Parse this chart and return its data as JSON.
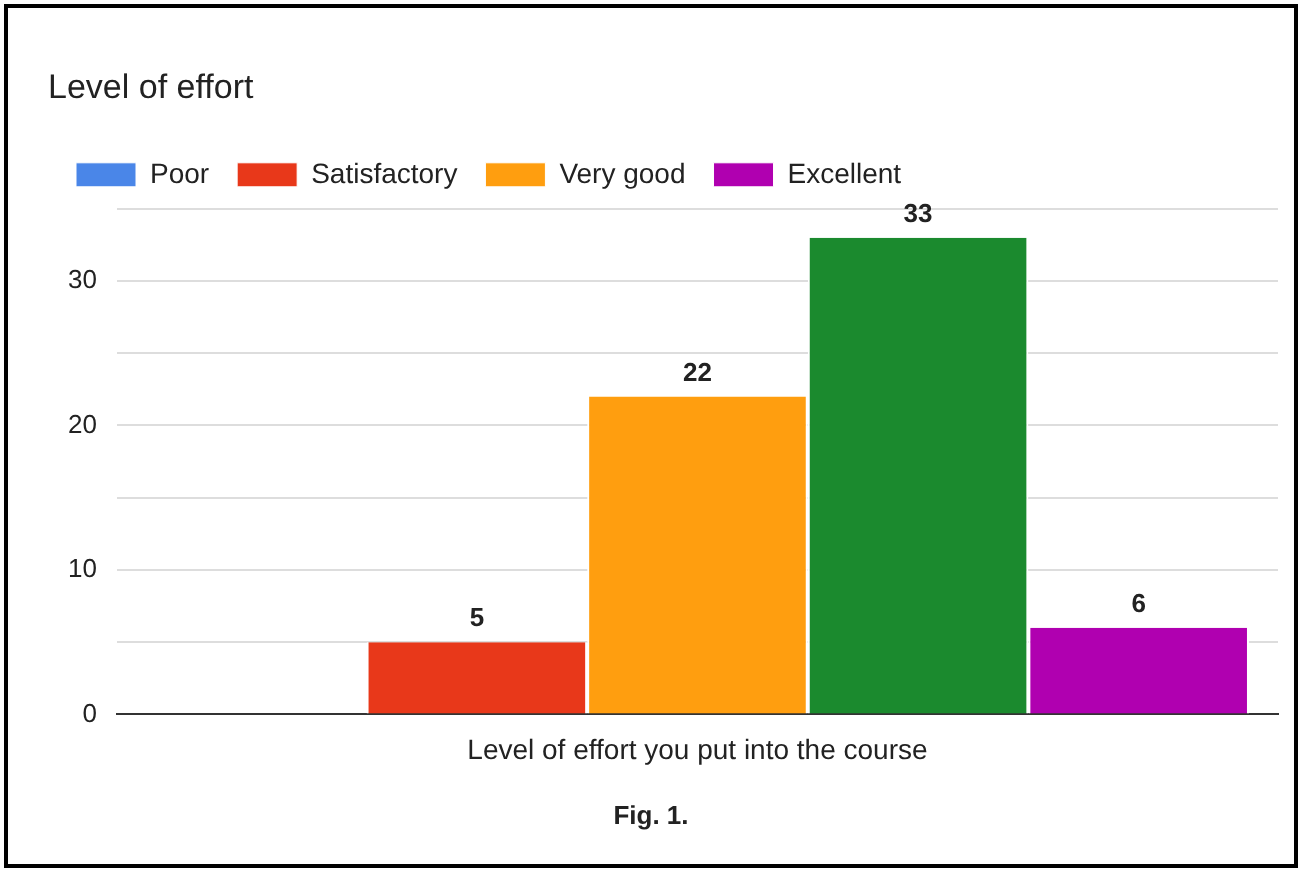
{
  "chart_data": {
    "type": "bar",
    "title": "Level of effort",
    "categories": [
      "Level of effort you put into the course"
    ],
    "series": [
      {
        "name": "Poor",
        "color": "#4a86e8",
        "values": [
          null
        ]
      },
      {
        "name": "Satisfactory",
        "color": "#e8381a",
        "values": [
          5
        ]
      },
      {
        "name": "Very good",
        "color": "#ff9e0f",
        "values": [
          22
        ]
      },
      {
        "color": "#1b8a2e",
        "values": [
          33
        ]
      },
      {
        "name": "Excellent",
        "color": "#b000b0",
        "values": [
          6
        ]
      }
    ],
    "ylim": [
      0,
      35
    ],
    "yticks": [
      0,
      {
        "value": 5,
        "label": null
      },
      10,
      {
        "value": 15,
        "label": null
      },
      20,
      {
        "value": 25,
        "label": null
      },
      30,
      {
        "value": 35,
        "label": null
      }
    ],
    "grid": "y",
    "legend": "top",
    "data_labels": true,
    "annotations": [
      "Fig. 1."
    ]
  }
}
